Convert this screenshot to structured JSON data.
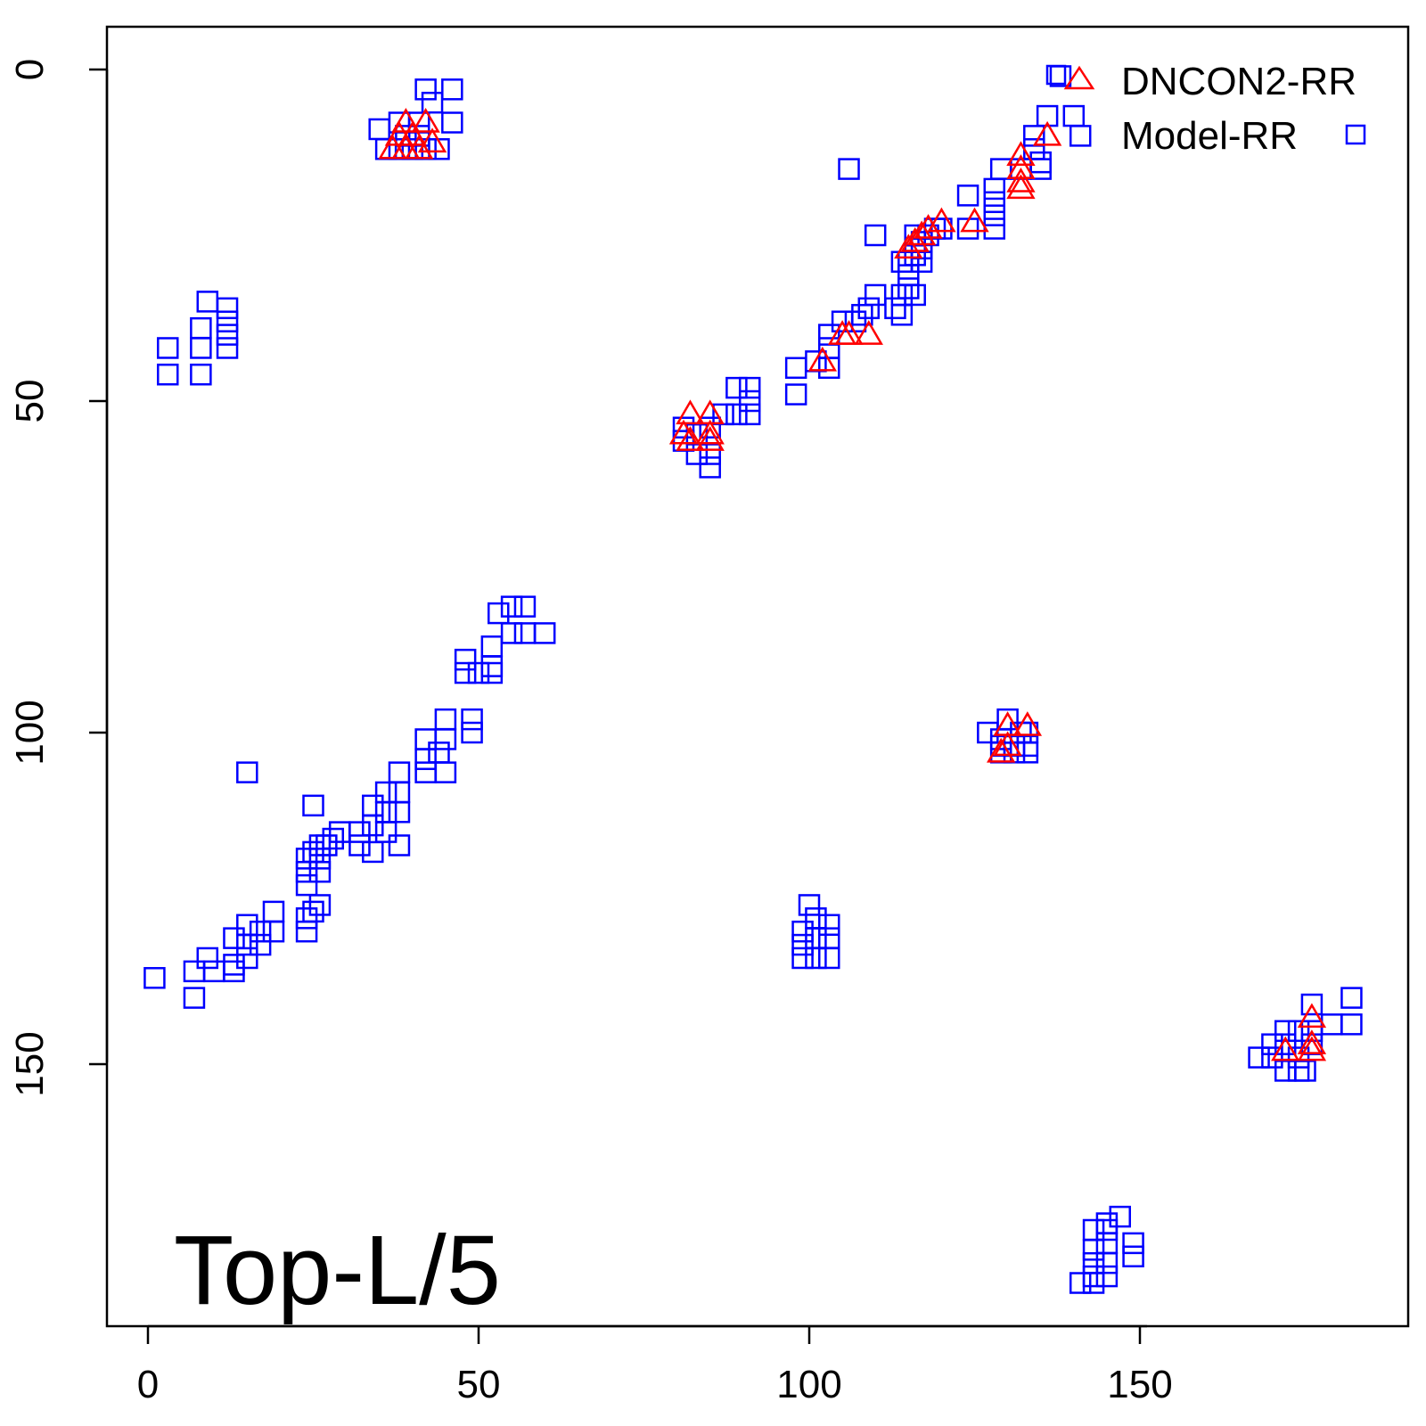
{
  "chart_data": {
    "type": "scatter",
    "panel_label": "Top-L/5",
    "x_ticks": [
      "0",
      "50",
      "100",
      "150"
    ],
    "y_ticks": [
      "0",
      "50",
      "100",
      "150"
    ],
    "xlim": [
      -6,
      190
    ],
    "ylim": [
      188,
      -6
    ],
    "y_axis_inverted": true,
    "grid": false,
    "legend_position": "top-right",
    "colors": {
      "dncon": "#ff0000",
      "model": "#0000ff"
    },
    "legend": [
      {
        "label": "DNCON2-RR",
        "marker": "triangle",
        "color": "#ff0000"
      },
      {
        "label": "Model-RR",
        "marker": "square",
        "color": "#0000ff"
      }
    ],
    "series": [
      {
        "name": "Model-RR",
        "marker": "square",
        "color": "#0000ff",
        "points": [
          [
            42,
            3
          ],
          [
            46,
            3
          ],
          [
            43,
            5
          ],
          [
            35,
            9
          ],
          [
            38,
            8
          ],
          [
            41,
            8
          ],
          [
            46,
            8
          ],
          [
            36,
            12
          ],
          [
            38,
            12
          ],
          [
            40,
            12
          ],
          [
            42,
            12
          ],
          [
            44,
            12
          ],
          [
            39,
            10
          ],
          [
            41,
            10
          ],
          [
            138,
            1
          ],
          [
            136,
            7
          ],
          [
            140,
            7
          ],
          [
            141,
            10
          ],
          [
            134,
            10
          ],
          [
            134,
            12
          ],
          [
            135,
            14
          ],
          [
            132,
            15
          ],
          [
            135,
            15
          ],
          [
            129,
            15
          ],
          [
            128,
            18
          ],
          [
            128,
            20
          ],
          [
            124,
            19
          ],
          [
            128,
            22
          ],
          [
            128,
            24
          ],
          [
            124,
            24
          ],
          [
            119,
            24
          ],
          [
            120,
            24
          ],
          [
            118,
            25
          ],
          [
            117,
            26
          ],
          [
            116,
            25
          ],
          [
            116,
            28
          ],
          [
            115,
            29
          ],
          [
            117,
            29
          ],
          [
            117,
            27
          ],
          [
            114,
            29
          ],
          [
            115,
            31
          ],
          [
            114,
            34
          ],
          [
            115,
            33
          ],
          [
            116,
            34
          ],
          [
            110,
            34
          ],
          [
            113,
            36
          ],
          [
            114,
            37
          ],
          [
            109,
            36
          ],
          [
            108,
            37
          ],
          [
            105,
            38
          ],
          [
            107,
            38
          ],
          [
            103,
            40
          ],
          [
            103,
            42
          ],
          [
            101,
            44
          ],
          [
            103,
            45
          ],
          [
            98,
            45
          ],
          [
            98,
            49
          ],
          [
            106,
            15
          ],
          [
            110,
            25
          ],
          [
            9,
            35
          ],
          [
            12,
            36
          ],
          [
            12,
            38
          ],
          [
            12,
            40
          ],
          [
            12,
            42
          ],
          [
            8,
            39
          ],
          [
            8,
            42
          ],
          [
            3,
            42
          ],
          [
            3,
            46
          ],
          [
            8,
            46
          ],
          [
            89,
            48
          ],
          [
            91,
            48
          ],
          [
            91,
            50
          ],
          [
            87,
            52
          ],
          [
            89,
            52
          ],
          [
            91,
            52
          ],
          [
            81,
            54
          ],
          [
            81,
            56
          ],
          [
            83,
            55
          ],
          [
            85,
            54
          ],
          [
            83,
            58
          ],
          [
            85,
            58
          ],
          [
            85,
            60
          ],
          [
            53,
            82
          ],
          [
            55,
            81
          ],
          [
            57,
            81
          ],
          [
            60,
            85
          ],
          [
            55,
            85
          ],
          [
            57,
            85
          ],
          [
            52,
            87
          ],
          [
            52,
            90
          ],
          [
            48,
            89
          ],
          [
            48,
            91
          ],
          [
            50,
            91
          ],
          [
            52,
            91
          ],
          [
            49,
            98
          ],
          [
            45,
            98
          ],
          [
            45,
            101
          ],
          [
            44,
            103
          ],
          [
            45,
            106
          ],
          [
            42,
            101
          ],
          [
            42,
            104
          ],
          [
            42,
            106
          ],
          [
            38,
            106
          ],
          [
            36,
            109
          ],
          [
            38,
            109
          ],
          [
            34,
            111
          ],
          [
            36,
            112
          ],
          [
            38,
            112
          ],
          [
            34,
            114
          ],
          [
            32,
            115
          ],
          [
            36,
            115
          ],
          [
            32,
            117
          ],
          [
            38,
            117
          ],
          [
            34,
            118
          ],
          [
            29,
            115
          ],
          [
            28,
            116
          ],
          [
            26,
            117
          ],
          [
            27,
            117
          ],
          [
            25,
            118
          ],
          [
            24,
            119
          ],
          [
            26,
            119
          ],
          [
            24,
            121
          ],
          [
            26,
            121
          ],
          [
            24,
            123
          ],
          [
            25,
            111
          ],
          [
            24,
            128
          ],
          [
            25,
            127
          ],
          [
            26,
            126
          ],
          [
            24,
            130
          ],
          [
            19,
            127
          ],
          [
            19,
            130
          ],
          [
            17,
            130
          ],
          [
            15,
            129
          ],
          [
            17,
            132
          ],
          [
            13,
            131
          ],
          [
            15,
            132
          ],
          [
            15,
            134
          ],
          [
            13,
            135
          ],
          [
            9,
            134
          ],
          [
            10,
            136
          ],
          [
            13,
            136
          ],
          [
            7,
            136
          ],
          [
            1,
            137
          ],
          [
            7,
            140
          ],
          [
            15,
            106
          ],
          [
            49,
            100
          ],
          [
            130,
            98
          ],
          [
            127,
            100
          ],
          [
            132,
            100
          ],
          [
            133,
            100
          ],
          [
            129,
            101
          ],
          [
            129,
            102
          ],
          [
            131,
            102
          ],
          [
            133,
            102
          ],
          [
            129,
            103
          ],
          [
            131,
            103
          ],
          [
            133,
            103
          ],
          [
            100,
            126
          ],
          [
            101,
            128
          ],
          [
            103,
            129
          ],
          [
            99,
            130
          ],
          [
            101,
            131
          ],
          [
            103,
            131
          ],
          [
            99,
            132
          ],
          [
            99,
            134
          ],
          [
            101,
            134
          ],
          [
            103,
            134
          ],
          [
            176,
            141
          ],
          [
            182,
            140
          ],
          [
            182,
            144
          ],
          [
            179,
            144
          ],
          [
            172,
            145
          ],
          [
            174,
            145
          ],
          [
            176,
            145
          ],
          [
            170,
            147
          ],
          [
            172,
            147
          ],
          [
            176,
            147
          ],
          [
            168,
            149
          ],
          [
            170,
            149
          ],
          [
            174,
            149
          ],
          [
            172,
            151
          ],
          [
            174,
            151
          ],
          [
            175,
            151
          ],
          [
            145,
            174
          ],
          [
            147,
            173
          ],
          [
            143,
            175
          ],
          [
            145,
            175
          ],
          [
            143,
            178
          ],
          [
            145,
            177
          ],
          [
            149,
            177
          ],
          [
            149,
            179
          ],
          [
            143,
            180
          ],
          [
            145,
            180
          ],
          [
            143,
            182
          ],
          [
            145,
            182
          ],
          [
            141,
            183
          ],
          [
            143,
            183
          ]
        ]
      },
      {
        "name": "DNCON2-RR",
        "marker": "triangle",
        "color": "#ff0000",
        "points": [
          [
            39,
            8
          ],
          [
            42,
            8
          ],
          [
            38,
            10
          ],
          [
            40,
            10
          ],
          [
            37,
            12
          ],
          [
            39,
            12
          ],
          [
            41,
            12
          ],
          [
            43,
            11
          ],
          [
            136,
            10
          ],
          [
            132,
            13
          ],
          [
            132,
            15
          ],
          [
            132,
            17
          ],
          [
            132,
            18
          ],
          [
            125,
            23
          ],
          [
            120,
            23
          ],
          [
            118,
            24
          ],
          [
            117,
            25
          ],
          [
            116,
            26
          ],
          [
            115,
            27
          ],
          [
            109,
            40
          ],
          [
            106,
            40
          ],
          [
            105,
            40
          ],
          [
            102,
            44
          ],
          [
            82,
            52
          ],
          [
            85,
            52
          ],
          [
            81,
            55
          ],
          [
            82,
            56
          ],
          [
            85,
            55
          ],
          [
            85,
            56
          ],
          [
            130,
            99
          ],
          [
            133,
            99
          ],
          [
            129,
            103
          ],
          [
            130,
            102
          ],
          [
            176,
            143
          ],
          [
            172,
            148
          ],
          [
            176,
            147
          ],
          [
            176,
            148
          ]
        ]
      }
    ]
  }
}
